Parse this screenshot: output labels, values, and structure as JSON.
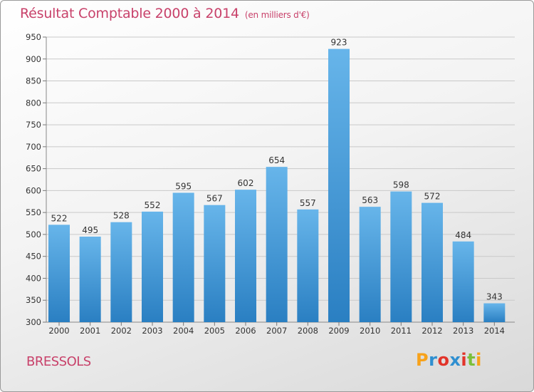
{
  "title": "Résultat Comptable 2000 à 2014",
  "subtitle": "(en milliers d'€)",
  "city": "BRESSOLS",
  "logo": {
    "text": "Proxiti",
    "colors": [
      "#f7a21b",
      "#2f8fd0",
      "#e2342a",
      "#2f8fd0",
      "#e2342a",
      "#7bbf3a",
      "#f7a21b"
    ]
  },
  "colors": {
    "title": "#c8416a",
    "bar_top": "#67b5ea",
    "bar_bottom": "#2a7fc2",
    "grid": "#c9c9c9"
  },
  "chart_data": {
    "type": "bar",
    "categories": [
      "2000",
      "2001",
      "2002",
      "2003",
      "2004",
      "2005",
      "2006",
      "2007",
      "2008",
      "2009",
      "2010",
      "2011",
      "2012",
      "2013",
      "2014"
    ],
    "values": [
      522,
      495,
      528,
      552,
      595,
      567,
      602,
      654,
      557,
      923,
      563,
      598,
      572,
      484,
      343
    ],
    "ylim": [
      300,
      950
    ],
    "yticks": [
      300,
      350,
      400,
      450,
      500,
      550,
      600,
      650,
      700,
      750,
      800,
      850,
      900,
      950
    ],
    "xlabel": "",
    "ylabel": ""
  }
}
